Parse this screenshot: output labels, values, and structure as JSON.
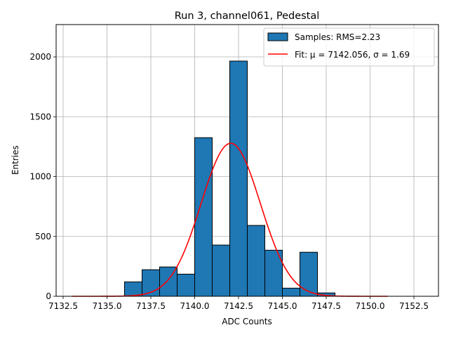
{
  "chart_data": {
    "type": "bar",
    "title": "Run 3, channel061, Pedestal",
    "xlabel": "ADC Counts",
    "ylabel": "Entries",
    "xlim": [
      7132.1,
      7153.9
    ],
    "ylim": [
      0,
      2270
    ],
    "xticks": [
      7132.5,
      7135.0,
      7137.5,
      7140.0,
      7142.5,
      7145.0,
      7147.5,
      7150.0,
      7152.5
    ],
    "xtick_labels": [
      "7132.5",
      "7135.0",
      "7137.5",
      "7140.0",
      "7142.5",
      "7145.0",
      "7147.5",
      "7150.0",
      "7152.5"
    ],
    "yticks": [
      0,
      500,
      1000,
      1500,
      2000
    ],
    "ytick_labels": [
      "0",
      "500",
      "1000",
      "1500",
      "2000"
    ],
    "grid": true,
    "legend_position": "top-right",
    "series": [
      {
        "name": "Samples: RMS=2.23",
        "kind": "histogram",
        "color": "#1f77b4",
        "edgecolor": "#000000",
        "bin_edges": [
          7136.0,
          7137.0,
          7138.0,
          7139.0,
          7140.0,
          7141.0,
          7142.0,
          7143.0,
          7144.0,
          7145.0,
          7146.0,
          7147.0,
          7148.0
        ],
        "values": [
          120,
          222,
          245,
          185,
          1325,
          428,
          1965,
          592,
          385,
          68,
          368,
          28
        ]
      },
      {
        "name": "Fit: μ = 7142.056, σ = 1.69",
        "kind": "gaussian_fit",
        "color": "#ff0000",
        "mu": 7142.056,
        "sigma": 1.69,
        "amplitude": 1278,
        "x_range": [
          7133.0,
          7151.0
        ]
      }
    ]
  }
}
